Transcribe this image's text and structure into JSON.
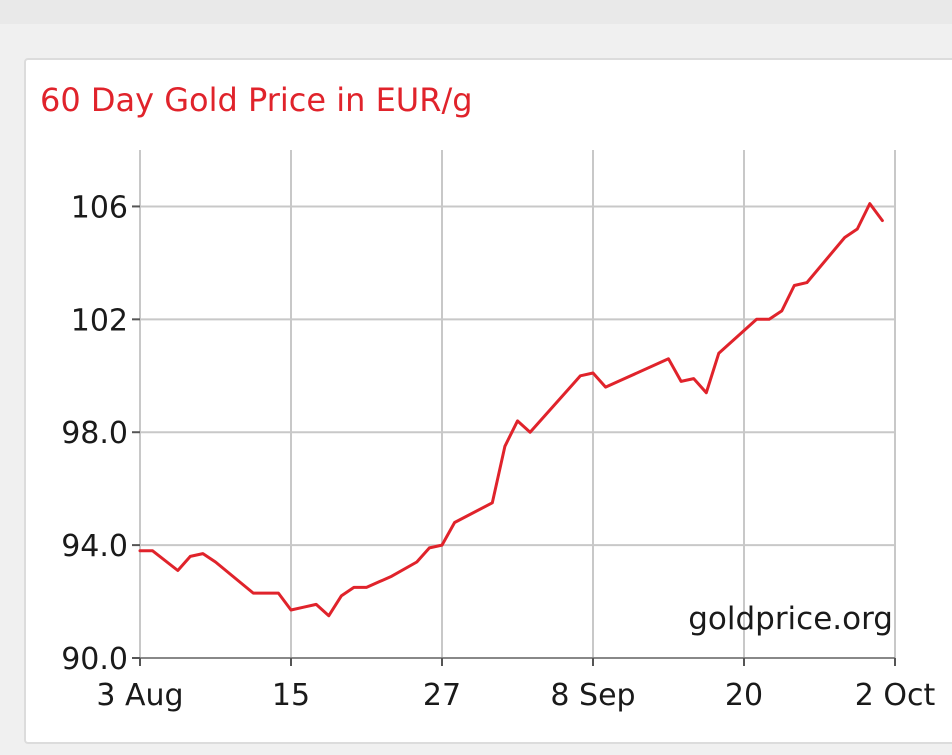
{
  "chart_data": {
    "type": "line",
    "title": "60 Day Gold Price in EUR/g",
    "watermark": "goldprice.org",
    "x_ticks": [
      "3 Aug",
      "15",
      "27",
      "8 Sep",
      "20",
      "2 Oct"
    ],
    "y_ticks": [
      "106",
      "102",
      "98.0",
      "94.0",
      "90.0"
    ],
    "xlim": [
      "2012-08-03",
      "2012-10-02"
    ],
    "ylim": [
      90,
      108
    ],
    "grid": true,
    "colors": {
      "line": "#e0232b",
      "title": "#e0232b",
      "grid": "#c8c8c8"
    },
    "series": [
      {
        "x": [
          "2012-08-03",
          "2012-08-04",
          "2012-08-06",
          "2012-08-07",
          "2012-08-08",
          "2012-08-09",
          "2012-08-12",
          "2012-08-13",
          "2012-08-14",
          "2012-08-15",
          "2012-08-16",
          "2012-08-17",
          "2012-08-18",
          "2012-08-19",
          "2012-08-20",
          "2012-08-21",
          "2012-08-22",
          "2012-08-23",
          "2012-08-25",
          "2012-08-26",
          "2012-08-27",
          "2012-08-28",
          "2012-08-31",
          "2012-09-01",
          "2012-09-02",
          "2012-09-03",
          "2012-09-07",
          "2012-09-08",
          "2012-09-09",
          "2012-09-14",
          "2012-09-15",
          "2012-09-16",
          "2012-09-17",
          "2012-09-18",
          "2012-09-21",
          "2012-09-22",
          "2012-09-23",
          "2012-09-24",
          "2012-09-25",
          "2012-09-28",
          "2012-09-29",
          "2012-09-30",
          "2012-10-01"
        ],
        "y": [
          93.8,
          93.8,
          93.1,
          93.6,
          93.7,
          93.4,
          92.3,
          92.3,
          92.3,
          91.7,
          91.8,
          91.9,
          91.5,
          92.2,
          92.5,
          92.5,
          92.7,
          92.9,
          93.4,
          93.9,
          94.0,
          94.8,
          95.5,
          97.5,
          98.4,
          98.0,
          100.0,
          100.1,
          99.6,
          100.6,
          99.8,
          99.9,
          99.4,
          100.8,
          102.0,
          102.0,
          102.3,
          103.2,
          103.3,
          104.9,
          105.2,
          106.1,
          105.5
        ]
      }
    ]
  }
}
